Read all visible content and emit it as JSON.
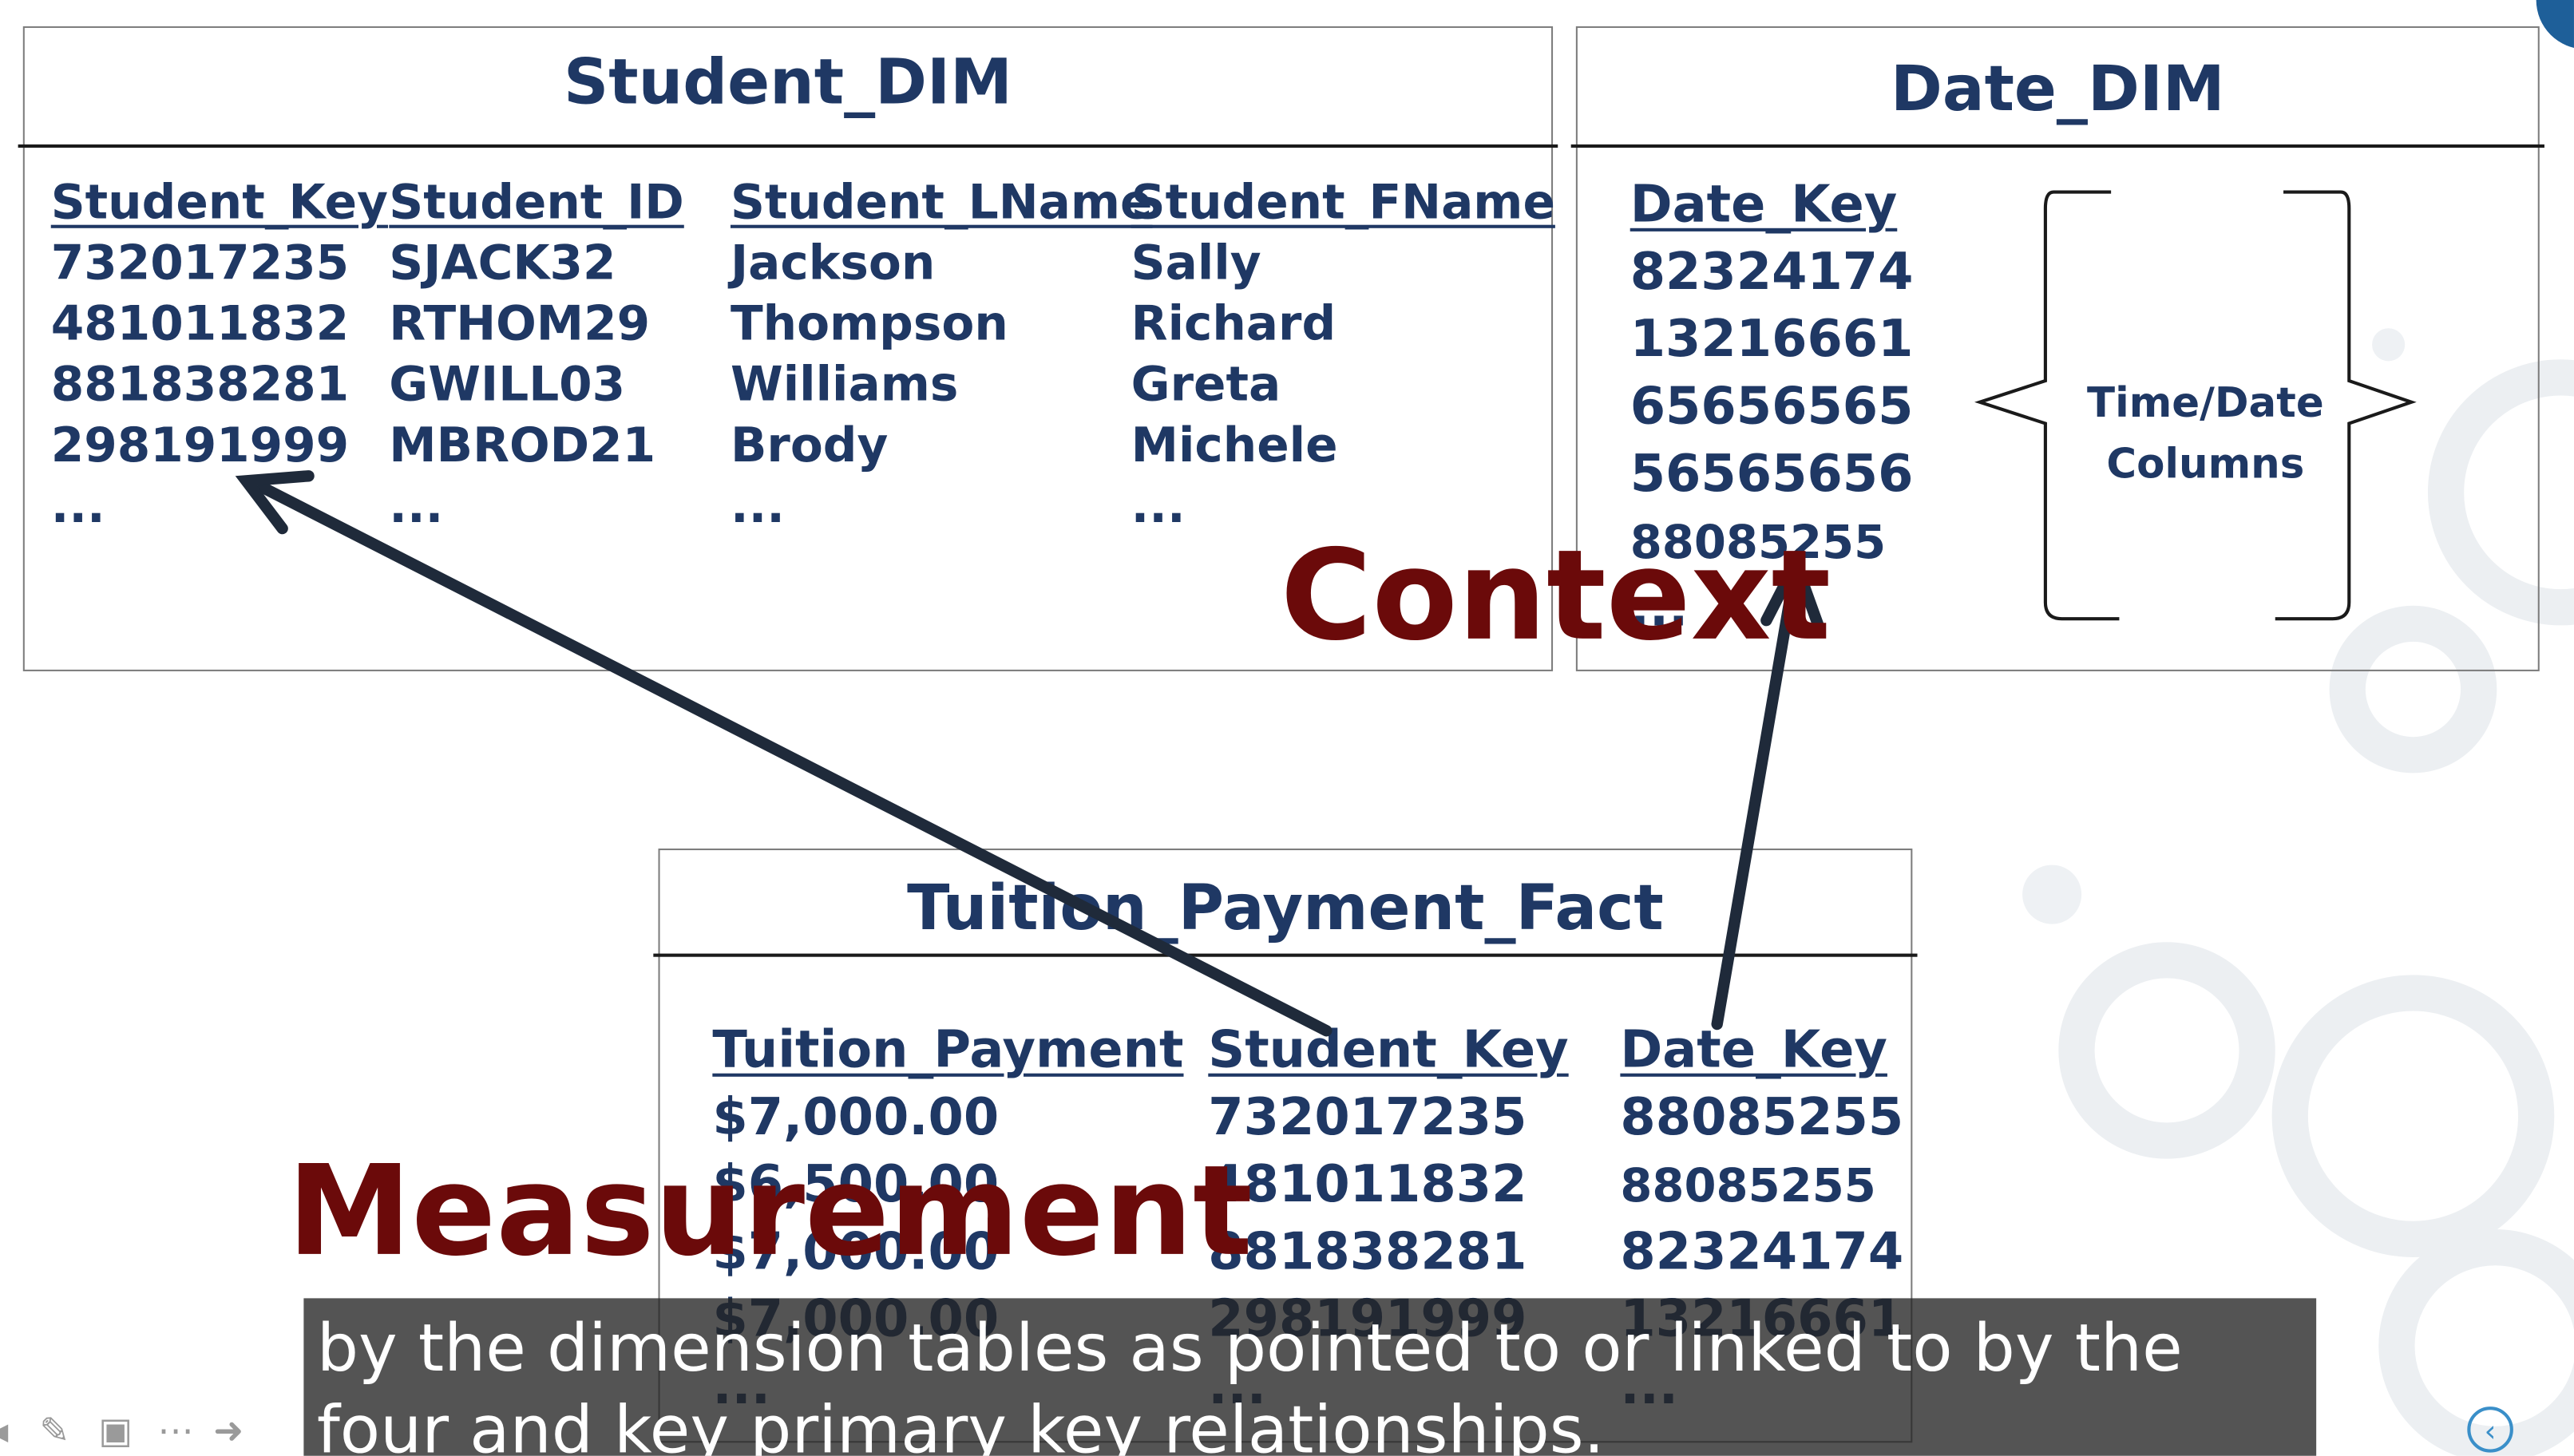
{
  "colors": {
    "table_text": "#1f3864",
    "emphasis_text": "#6b0a0a",
    "arrow": "#1f2a3a",
    "caption_bg": "#242424"
  },
  "student_dim": {
    "title": "Student_DIM",
    "columns": [
      {
        "header": "Student_Key",
        "rows": [
          "732017235",
          "481011832",
          "881838281",
          "298191999",
          "..."
        ]
      },
      {
        "header": "Student_ID",
        "rows": [
          "SJACK32",
          "RTHOM29",
          "GWILL03",
          "MBROD21",
          "..."
        ]
      },
      {
        "header": "Student_LName",
        "rows": [
          "Jackson",
          "Thompson",
          "Williams",
          "Brody",
          "..."
        ]
      },
      {
        "header": "Student_FName",
        "rows": [
          "Sally",
          "Richard",
          "Greta",
          "Michele",
          "..."
        ]
      }
    ]
  },
  "date_dim": {
    "title": "Date_DIM",
    "column": {
      "header": "Date_Key",
      "rows": [
        "82324174",
        "13216661",
        "65656565",
        "56565656",
        "88085255",
        "..."
      ]
    },
    "brace_label_line1": "Time/Date",
    "brace_label_line2": "Columns"
  },
  "fact": {
    "title": "Tuition_Payment_Fact",
    "columns": [
      {
        "header": "Tuition_Payment",
        "rows": [
          "$7,000.00",
          "$6,500.00",
          "$7,000.00",
          "$7,000.00",
          "..."
        ]
      },
      {
        "header": "Student_Key",
        "rows": [
          "732017235",
          "481011832",
          "881838281",
          "298191999",
          "..."
        ]
      },
      {
        "header": "Date_Key",
        "rows": [
          "88085255",
          "88085255",
          "82324174",
          "13216661",
          "..."
        ]
      }
    ]
  },
  "labels": {
    "context": "Context",
    "measurement": "Measurement"
  },
  "caption": {
    "line1": "by the dimension tables as pointed to or linked to by the",
    "line2": "four and key primary key relationships."
  },
  "toolbar": {
    "icons": [
      "prev-arrow-icon",
      "pen-icon",
      "screen-icon",
      "more-icon",
      "next-arrow-icon"
    ],
    "prev_glyph": "◂",
    "pen_glyph": "✎",
    "screen_glyph": "▣",
    "more_glyph": "⋯",
    "next_glyph": "➜",
    "nav_glyph": "‹"
  }
}
